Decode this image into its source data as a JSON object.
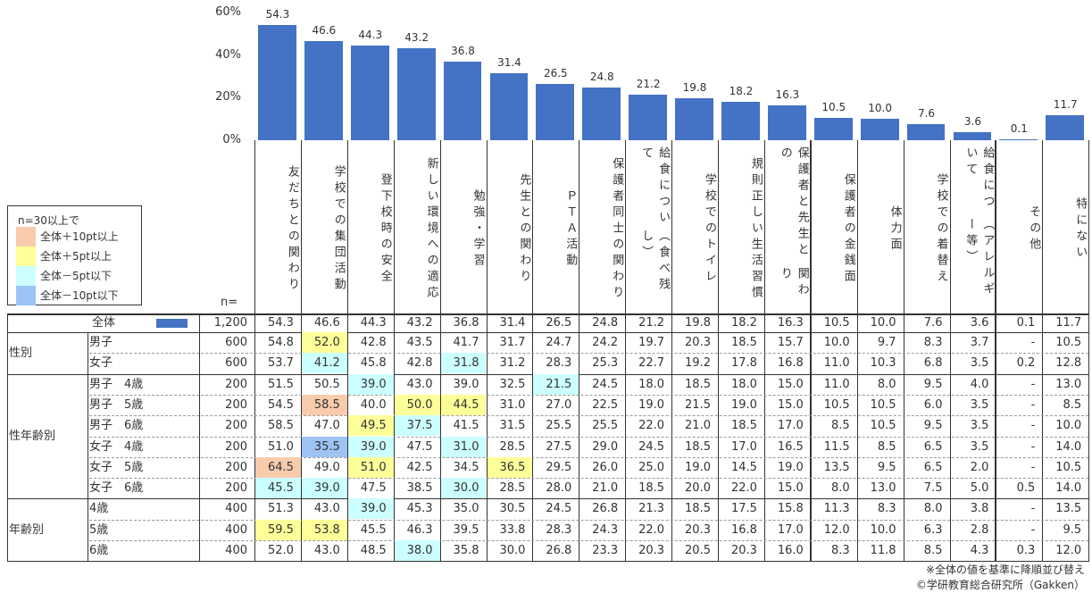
{
  "chart_data": {
    "type": "bar",
    "title": "",
    "ylim": [
      0,
      60
    ],
    "yticks": [
      "60%",
      "40%",
      "20%",
      "0%"
    ],
    "ytick_values": [
      60,
      40,
      20,
      0
    ],
    "bar_color": "#4472C4",
    "categories": [
      [
        "友だちとの関わり"
      ],
      [
        "学校での集団活動"
      ],
      [
        "登下校時の安全"
      ],
      [
        "新しい環境への適応"
      ],
      [
        "勉強・学習"
      ],
      [
        "先生との関わり"
      ],
      [
        "ＰＴＡ活動"
      ],
      [
        "保護者同士の関わり"
      ],
      [
        "給食について",
        "（食べ残し）"
      ],
      [
        "学校でのトイレ"
      ],
      [
        "規則正しい生活習慣"
      ],
      [
        "保護者と先生との",
        "関わり"
      ],
      [
        "保護者の金銭面"
      ],
      [
        "体力面"
      ],
      [
        "学校での着替え"
      ],
      [
        "給食について",
        "（アレルギー等）"
      ],
      [
        "その他"
      ],
      [
        "特にない"
      ]
    ],
    "values": [
      54.3,
      46.6,
      44.3,
      43.2,
      36.8,
      31.4,
      26.5,
      24.8,
      21.2,
      19.8,
      18.2,
      16.3,
      10.5,
      10.0,
      7.6,
      3.6,
      0.1,
      11.7
    ]
  },
  "legend": {
    "title": "n=30以上で",
    "items": [
      {
        "label": "全体＋10pt以上",
        "code": "p10",
        "color": "#F8CBAD"
      },
      {
        "label": "全体＋5pt以上",
        "code": "p5",
        "color": "#FFFF99"
      },
      {
        "label": "全体－5pt以下",
        "code": "m5",
        "color": "#CCFFFF"
      },
      {
        "label": "全体－10pt以下",
        "code": "m10",
        "color": "#9DC3F5"
      }
    ]
  },
  "table": {
    "n_header": "n=",
    "total": {
      "label": "全体",
      "n": "1,200",
      "values": [
        "54.3",
        "46.6",
        "44.3",
        "43.2",
        "36.8",
        "31.4",
        "26.5",
        "24.8",
        "21.2",
        "19.8",
        "18.2",
        "16.3",
        "10.5",
        "10.0",
        "7.6",
        "3.6",
        "0.1",
        "11.7"
      ]
    },
    "groups": [
      {
        "label": "性別",
        "rows": [
          {
            "label": "男子",
            "n": "600",
            "values": [
              "54.8",
              "52.0",
              "42.8",
              "43.5",
              "41.7",
              "31.7",
              "24.7",
              "24.2",
              "19.7",
              "20.3",
              "18.5",
              "15.7",
              "10.0",
              "9.7",
              "8.3",
              "3.7",
              "-",
              "10.5"
            ],
            "hl": {
              "1": "p5"
            }
          },
          {
            "label": "女子",
            "n": "600",
            "values": [
              "53.7",
              "41.2",
              "45.8",
              "42.8",
              "31.8",
              "31.2",
              "28.3",
              "25.3",
              "22.7",
              "19.2",
              "17.8",
              "16.8",
              "11.0",
              "10.3",
              "6.8",
              "3.5",
              "0.2",
              "12.8"
            ],
            "hl": {
              "1": "m5",
              "4": "m5"
            }
          }
        ]
      },
      {
        "label": "性年齢別",
        "rows": [
          {
            "label": "男子　4歳",
            "n": "200",
            "values": [
              "51.5",
              "50.5",
              "39.0",
              "43.0",
              "39.0",
              "32.5",
              "21.5",
              "24.5",
              "18.0",
              "18.5",
              "18.0",
              "15.0",
              "11.0",
              "8.0",
              "9.5",
              "4.0",
              "-",
              "13.0"
            ],
            "hl": {
              "2": "m5",
              "6": "m5"
            }
          },
          {
            "label": "男子　5歳",
            "n": "200",
            "values": [
              "54.5",
              "58.5",
              "40.0",
              "50.0",
              "44.5",
              "31.0",
              "27.0",
              "22.5",
              "19.0",
              "21.5",
              "19.0",
              "15.0",
              "10.5",
              "10.5",
              "6.0",
              "3.5",
              "-",
              "8.5"
            ],
            "hl": {
              "1": "p10",
              "3": "p5",
              "4": "p5"
            }
          },
          {
            "label": "男子　6歳",
            "n": "200",
            "values": [
              "58.5",
              "47.0",
              "49.5",
              "37.5",
              "41.5",
              "31.5",
              "25.5",
              "25.5",
              "22.0",
              "21.0",
              "18.5",
              "17.0",
              "8.5",
              "10.5",
              "9.5",
              "3.5",
              "-",
              "10.0"
            ],
            "hl": {
              "2": "p5",
              "3": "m5"
            }
          },
          {
            "label": "女子　4歳",
            "n": "200",
            "values": [
              "51.0",
              "35.5",
              "39.0",
              "47.5",
              "31.0",
              "28.5",
              "27.5",
              "29.0",
              "24.5",
              "18.5",
              "17.0",
              "16.5",
              "11.5",
              "8.5",
              "6.5",
              "3.5",
              "-",
              "14.0"
            ],
            "hl": {
              "1": "m10",
              "2": "m5",
              "4": "m5"
            }
          },
          {
            "label": "女子　5歳",
            "n": "200",
            "values": [
              "64.5",
              "49.0",
              "51.0",
              "42.5",
              "34.5",
              "36.5",
              "29.5",
              "26.0",
              "25.0",
              "19.0",
              "14.5",
              "19.0",
              "13.5",
              "9.5",
              "6.5",
              "2.0",
              "-",
              "10.5"
            ],
            "hl": {
              "0": "p10",
              "2": "p5",
              "5": "p5"
            }
          },
          {
            "label": "女子　6歳",
            "n": "200",
            "values": [
              "45.5",
              "39.0",
              "47.5",
              "38.5",
              "30.0",
              "28.5",
              "28.0",
              "21.0",
              "18.5",
              "20.0",
              "22.0",
              "15.0",
              "8.0",
              "13.0",
              "7.5",
              "5.0",
              "0.5",
              "14.0"
            ],
            "hl": {
              "0": "m5",
              "1": "m5",
              "4": "m5"
            }
          }
        ]
      },
      {
        "label": "年齢別",
        "rows": [
          {
            "label": "4歳",
            "n": "400",
            "values": [
              "51.3",
              "43.0",
              "39.0",
              "45.3",
              "35.0",
              "30.5",
              "24.5",
              "26.8",
              "21.3",
              "18.5",
              "17.5",
              "15.8",
              "11.3",
              "8.3",
              "8.0",
              "3.8",
              "-",
              "13.5"
            ],
            "hl": {
              "2": "m5"
            }
          },
          {
            "label": "5歳",
            "n": "400",
            "values": [
              "59.5",
              "53.8",
              "45.5",
              "46.3",
              "39.5",
              "33.8",
              "28.3",
              "24.3",
              "22.0",
              "20.3",
              "16.8",
              "17.0",
              "12.0",
              "10.0",
              "6.3",
              "2.8",
              "-",
              "9.5"
            ],
            "hl": {
              "0": "p5",
              "1": "p5"
            }
          },
          {
            "label": "6歳",
            "n": "400",
            "values": [
              "52.0",
              "43.0",
              "48.5",
              "38.0",
              "35.8",
              "30.0",
              "26.8",
              "23.3",
              "20.3",
              "20.5",
              "20.3",
              "16.0",
              "8.3",
              "11.8",
              "8.5",
              "4.3",
              "0.3",
              "12.0"
            ],
            "hl": {
              "3": "m5"
            }
          }
        ]
      }
    ]
  },
  "notes": {
    "sort_note": "※全体の値を基準に降順並び替え",
    "copyright": "©学研教育総合研究所（Gakken）"
  }
}
